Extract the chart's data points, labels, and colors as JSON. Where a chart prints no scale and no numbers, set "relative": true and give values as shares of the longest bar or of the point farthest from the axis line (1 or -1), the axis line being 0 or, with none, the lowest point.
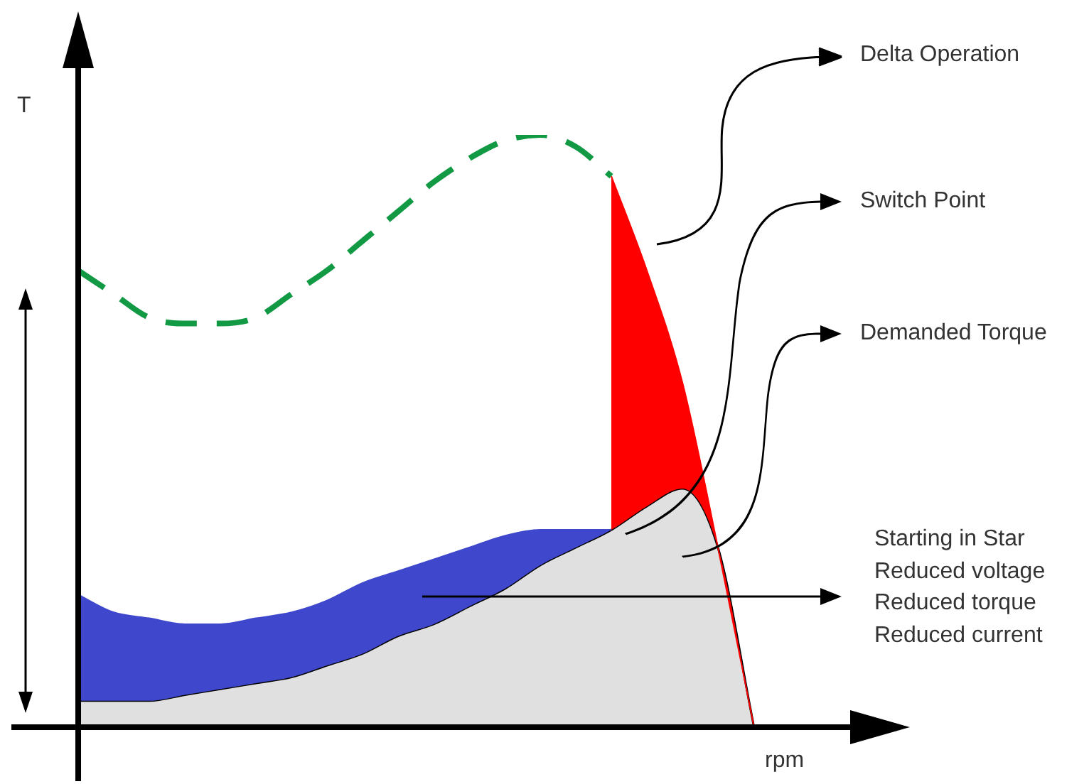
{
  "chart_data": {
    "type": "area",
    "relative": true,
    "xlabel": "rpm",
    "ylabel": "T",
    "tick_labels": false,
    "legend": false,
    "categories": [
      null,
      null,
      null,
      null,
      null,
      null,
      null,
      null,
      null,
      null,
      null,
      null,
      null,
      null,
      null,
      null,
      null,
      null,
      null,
      null,
      null
    ],
    "series": [
      {
        "color": "#e0e0e0",
        "values": [
          0.04,
          0.04,
          0.04,
          0.05,
          0.06,
          0.07,
          0.08,
          0.1,
          0.12,
          0.15,
          0.17,
          0.2,
          0.23,
          0.27,
          0.3,
          0.33,
          0.37,
          0.4,
          0.3,
          0,
          null
        ]
      },
      {
        "color": "#3f48cc",
        "values": [
          0.22,
          0.19,
          0.18,
          0.17,
          0.17,
          0.18,
          0.19,
          0.21,
          0.24,
          0.26,
          0.28,
          0.3,
          0.32,
          0.33,
          0.33,
          0.33,
          null,
          null,
          null,
          null,
          null
        ]
      },
      {
        "color": "#ff0000",
        "values": [
          null,
          null,
          null,
          null,
          null,
          null,
          null,
          null,
          null,
          null,
          null,
          null,
          null,
          null,
          null,
          0.93,
          0.77,
          0.58,
          0.3,
          0,
          null
        ]
      },
      {
        "type": "line",
        "color": "#119944",
        "line_style": "dashed",
        "values": [
          0.77,
          0.73,
          0.69,
          0.68,
          0.68,
          0.69,
          0.73,
          0.77,
          0.82,
          0.87,
          0.92,
          0.96,
          0.99,
          1,
          0.98,
          0.93,
          null,
          null,
          null,
          null,
          null
        ]
      }
    ],
    "annotations": [
      "Delta Operation",
      "Switch Point",
      "Demanded Torque",
      "Starting in Star\nReduced voltage\nReduced torque\nReduced current"
    ]
  }
}
